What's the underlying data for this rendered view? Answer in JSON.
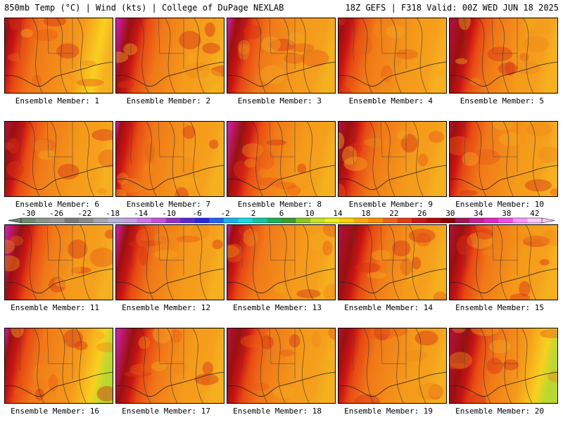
{
  "header": {
    "left": "850mb Temp (°C) | Wind (kts) | College of DuPage NEXLAB",
    "right": "18Z GEFS | F318 Valid: 00Z WED JUN 18 2025"
  },
  "label_prefix": "Ensemble Member:",
  "members": [
    1,
    2,
    3,
    4,
    5,
    6,
    7,
    8,
    9,
    10,
    11,
    12,
    13,
    14,
    15,
    16,
    17,
    18,
    19,
    20
  ],
  "colorbar": {
    "ticks": [
      -30,
      -26,
      -22,
      -18,
      -14,
      -10,
      -6,
      -2,
      2,
      6,
      10,
      14,
      18,
      22,
      26,
      30,
      34,
      38,
      42
    ],
    "colors": [
      "#6e8c6e",
      "#889988",
      "#999999",
      "#7a7a7a",
      "#8c8c8c",
      "#a6a6b4",
      "#b4b4dc",
      "#c8a0e6",
      "#d278e6",
      "#c850dc",
      "#9632c8",
      "#5a28d2",
      "#2828e6",
      "#1e64f0",
      "#14b4f0",
      "#14dce6",
      "#14c8a0",
      "#14b45a",
      "#3ca028",
      "#8cc81e",
      "#c8e61e",
      "#f0f014",
      "#ffd200",
      "#ffaa00",
      "#ff8c00",
      "#f06414",
      "#e63c14",
      "#d21414",
      "#b40a0a",
      "#8c0000",
      "#a0145a",
      "#c81e96",
      "#e628c8",
      "#f050e6",
      "#ff96ff",
      "#ffc8ff"
    ]
  }
}
